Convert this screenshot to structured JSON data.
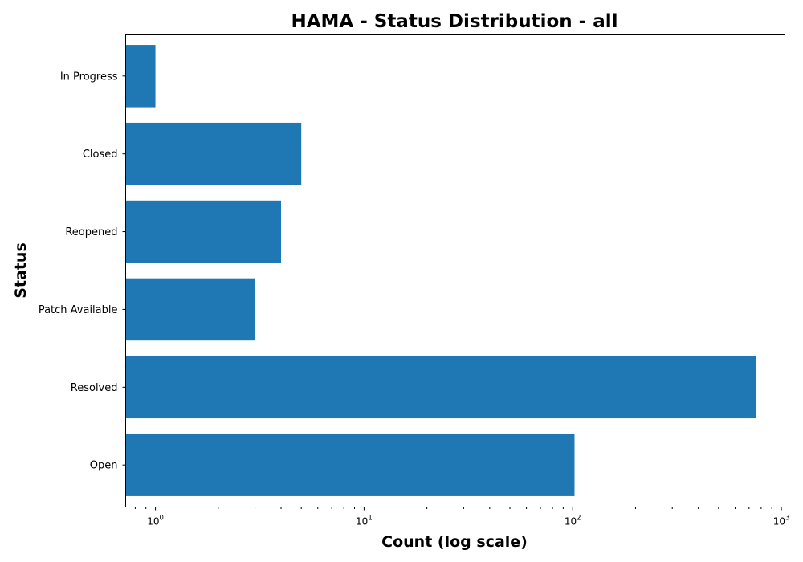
{
  "chart_data": {
    "type": "bar",
    "orientation": "horizontal",
    "title": "HAMA - Status Distribution - all",
    "xlabel": "Count (log scale)",
    "ylabel": "Status",
    "x_scale": "log",
    "xlim": [
      0.72,
      1040
    ],
    "categories": [
      "Open",
      "Resolved",
      "Patch Available",
      "Reopened",
      "Closed",
      "In Progress"
    ],
    "values": [
      102,
      754,
      3,
      4,
      5,
      1
    ],
    "bar_color": "#1f77b4",
    "x_ticks": [
      {
        "value": 1,
        "base": "10",
        "exp": "0"
      },
      {
        "value": 10,
        "base": "10",
        "exp": "1"
      },
      {
        "value": 100,
        "base": "10",
        "exp": "2"
      },
      {
        "value": 1000,
        "base": "10",
        "exp": "3"
      }
    ],
    "grid": false,
    "legend": "none"
  }
}
